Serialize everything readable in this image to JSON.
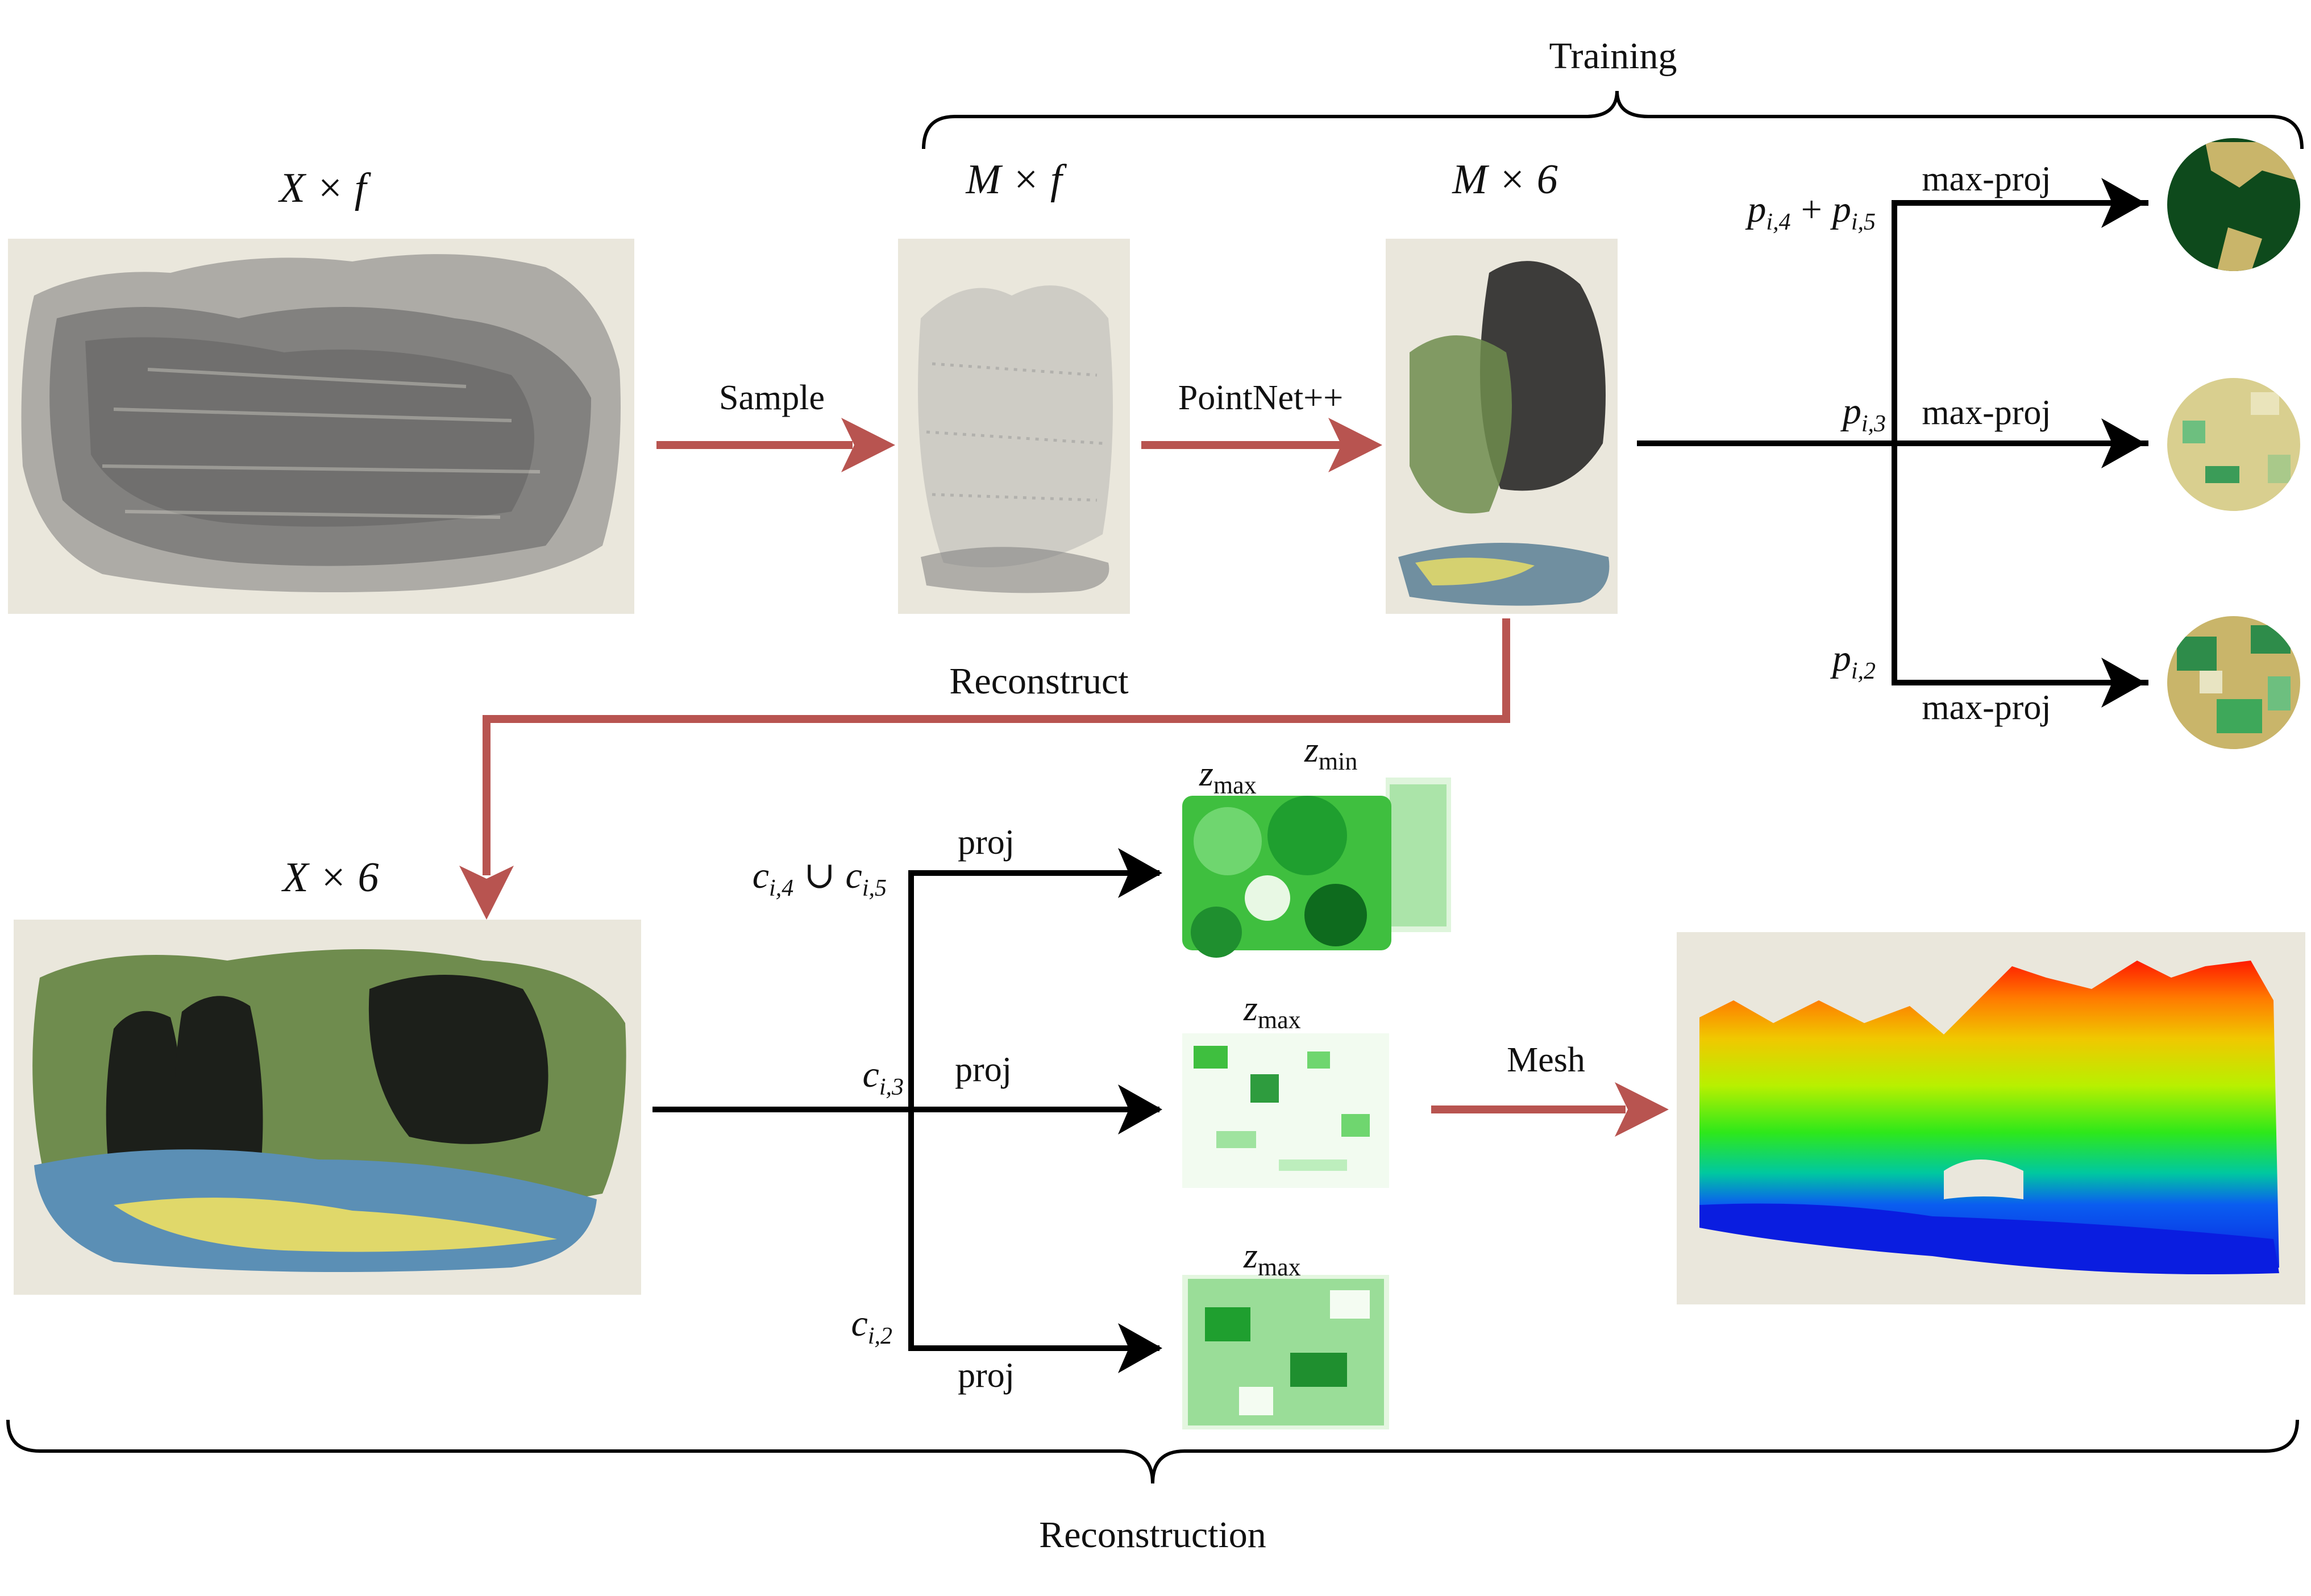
{
  "colors": {
    "panel_bg": "#eae7dc",
    "arrow_red": "#b85450",
    "arrow_black": "#000000",
    "gray_points": "#6b6b6b",
    "canopy_green": "#6f8c4e",
    "dark_trees": "#1c1f1a",
    "ground_blue": "#5b8fb5",
    "ground_yellow": "#e0d86a",
    "mesh_bg": "#eae7dc"
  },
  "labels": {
    "training": "Training",
    "reconstruction": "Reconstruction",
    "x_f": "X × f",
    "m_f": "M × f",
    "m_6": "M × 6",
    "x_6": "X × 6",
    "sample": "Sample",
    "pointnet": "PointNet++",
    "reconstruct": "Reconstruct",
    "mesh": "Mesh",
    "max_proj_1": "max-proj",
    "max_proj_2": "max-proj",
    "max_proj_3": "max-proj",
    "proj_1": "proj",
    "proj_2": "proj",
    "proj_3": "proj",
    "p_i45": "p",
    "p_i45_sub1": "i,4",
    "p_i45_plus": "+",
    "p_i45_p2": "p",
    "p_i45_sub2": "i,5",
    "p_i3": "p",
    "p_i3_sub": "i,3",
    "p_i2": "p",
    "p_i2_sub": "i,2",
    "c_i45": "c",
    "c_i45_sub1": "i,4",
    "c_i45_cup": "∪",
    "c_i45_c2": "c",
    "c_i45_sub2": "i,5",
    "c_i3": "c",
    "c_i3_sub": "i,3",
    "c_i2": "c",
    "c_i2_sub": "i,2",
    "zmax_1": "z",
    "zmax_1_sub": "max",
    "zmin": "z",
    "zmin_sub": "min",
    "zmax_2": "z",
    "zmax_2_sub": "max",
    "zmax_3": "z",
    "zmax_3_sub": "max"
  }
}
